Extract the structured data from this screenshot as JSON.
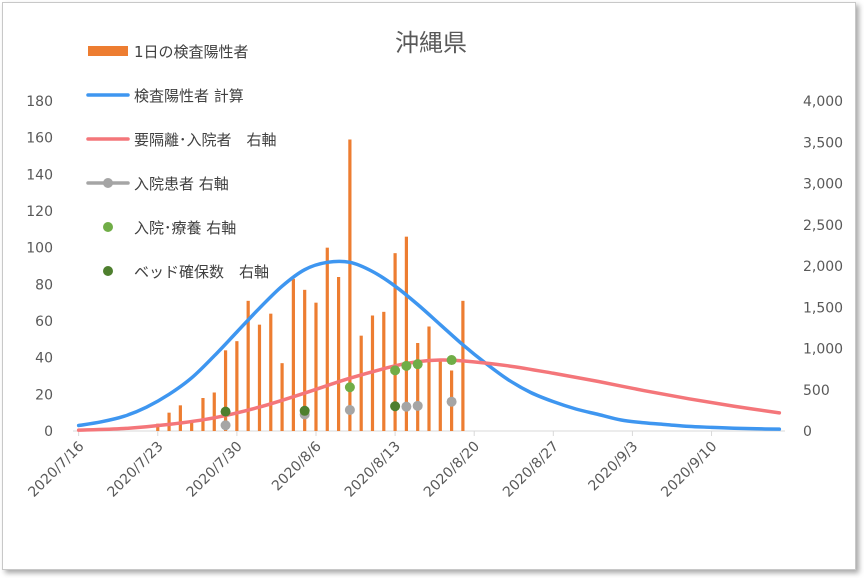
{
  "chart_data": {
    "type": "bar+line+scatter",
    "title": "沖縄県",
    "x_ticks": [
      "2020/7/16",
      "2020/7/23",
      "2020/7/30",
      "2020/8/6",
      "2020/8/13",
      "2020/8/20",
      "2020/8/27",
      "2020/9/3",
      "2020/9/10"
    ],
    "x_range": [
      "2020/7/16",
      "2020/9/17"
    ],
    "y_left": {
      "min": 0,
      "max": 180,
      "step": 20,
      "ticks": [
        "0",
        "20",
        "40",
        "60",
        "80",
        "100",
        "120",
        "140",
        "160",
        "180"
      ]
    },
    "y_right": {
      "min": 0,
      "max": 4000,
      "step": 500,
      "ticks": [
        "0",
        "500",
        "1,000",
        "1,500",
        "2,000",
        "2,500",
        "3,000",
        "3,500",
        "4,000"
      ]
    },
    "grid": false,
    "legend_position": "top-left",
    "colors": {
      "bars": "#ed7d31",
      "calc_line": "#3e96f0",
      "hospital_line": "#f4767a",
      "inpatient": "#a5a5a5",
      "in_and_recovery": "#70ad47",
      "beds": "#4e7f2e"
    },
    "series": [
      {
        "name": "1日の検査陽性者",
        "kind": "bar",
        "axis": "left",
        "dates": [
          "2020/7/23",
          "2020/7/24",
          "2020/7/25",
          "2020/7/26",
          "2020/7/27",
          "2020/7/28",
          "2020/7/29",
          "2020/7/30",
          "2020/7/31",
          "2020/8/1",
          "2020/8/2",
          "2020/8/3",
          "2020/8/4",
          "2020/8/5",
          "2020/8/6",
          "2020/8/7",
          "2020/8/8",
          "2020/8/9",
          "2020/8/10",
          "2020/8/11",
          "2020/8/12",
          "2020/8/13",
          "2020/8/14",
          "2020/8/15",
          "2020/8/16",
          "2020/8/17",
          "2020/8/18",
          "2020/8/19"
        ],
        "values": [
          4,
          10,
          14,
          6,
          18,
          21,
          44,
          49,
          71,
          58,
          64,
          37,
          83,
          77,
          70,
          100,
          84,
          159,
          52,
          63,
          65,
          97,
          106,
          48,
          57,
          38,
          33,
          71
        ]
      },
      {
        "name": "検査陽性者 計算",
        "kind": "line",
        "axis": "left",
        "points": [
          [
            "2020/7/16",
            3
          ],
          [
            "2020/7/18",
            5
          ],
          [
            "2020/7/20",
            8
          ],
          [
            "2020/7/22",
            13
          ],
          [
            "2020/7/24",
            20
          ],
          [
            "2020/7/26",
            29
          ],
          [
            "2020/7/28",
            41
          ],
          [
            "2020/7/30",
            54
          ],
          [
            "2020/8/1",
            67
          ],
          [
            "2020/8/3",
            79
          ],
          [
            "2020/8/5",
            88
          ],
          [
            "2020/8/7",
            92
          ],
          [
            "2020/8/9",
            92
          ],
          [
            "2020/8/11",
            87
          ],
          [
            "2020/8/13",
            79
          ],
          [
            "2020/8/15",
            69
          ],
          [
            "2020/8/17",
            58
          ],
          [
            "2020/8/19",
            47
          ],
          [
            "2020/8/21",
            37
          ],
          [
            "2020/8/23",
            28
          ],
          [
            "2020/8/25",
            21
          ],
          [
            "2020/8/27",
            16
          ],
          [
            "2020/8/29",
            12
          ],
          [
            "2020/8/31",
            9
          ],
          [
            "2020/9/2",
            6
          ],
          [
            "2020/9/4",
            4.5
          ],
          [
            "2020/9/6",
            3.5
          ],
          [
            "2020/9/8",
            2.5
          ],
          [
            "2020/9/10",
            2
          ],
          [
            "2020/9/12",
            1.5
          ],
          [
            "2020/9/14",
            1.2
          ],
          [
            "2020/9/16",
            1
          ]
        ]
      },
      {
        "name": "要隔離･入院者　右軸",
        "kind": "line",
        "axis": "right",
        "points": [
          [
            "2020/7/16",
            10
          ],
          [
            "2020/7/20",
            30
          ],
          [
            "2020/7/24",
            80
          ],
          [
            "2020/7/28",
            160
          ],
          [
            "2020/8/1",
            290
          ],
          [
            "2020/8/5",
            460
          ],
          [
            "2020/8/9",
            640
          ],
          [
            "2020/8/13",
            790
          ],
          [
            "2020/8/15",
            840
          ],
          [
            "2020/8/17",
            860
          ],
          [
            "2020/8/19",
            850
          ],
          [
            "2020/8/23",
            790
          ],
          [
            "2020/8/27",
            700
          ],
          [
            "2020/8/31",
            600
          ],
          [
            "2020/9/4",
            490
          ],
          [
            "2020/9/8",
            390
          ],
          [
            "2020/9/12",
            300
          ],
          [
            "2020/9/16",
            220
          ]
        ]
      },
      {
        "name": "入院患者 右軸",
        "kind": "scatter",
        "axis": "right",
        "points": [
          [
            "2020/7/29",
            70
          ],
          [
            "2020/8/5",
            200
          ],
          [
            "2020/8/9",
            255
          ],
          [
            "2020/8/14",
            295
          ],
          [
            "2020/8/15",
            305
          ],
          [
            "2020/8/18",
            355
          ]
        ]
      },
      {
        "name": "入院･療養 右軸",
        "kind": "scatter",
        "axis": "right",
        "points": [
          [
            "2020/8/9",
            530
          ],
          [
            "2020/8/13",
            735
          ],
          [
            "2020/8/14",
            790
          ],
          [
            "2020/8/15",
            810
          ],
          [
            "2020/8/18",
            860
          ]
        ]
      },
      {
        "name": "ベッド確保数　右軸",
        "kind": "scatter",
        "axis": "right",
        "points": [
          [
            "2020/7/29",
            235
          ],
          [
            "2020/8/5",
            245
          ],
          [
            "2020/8/13",
            300
          ]
        ]
      }
    ]
  }
}
